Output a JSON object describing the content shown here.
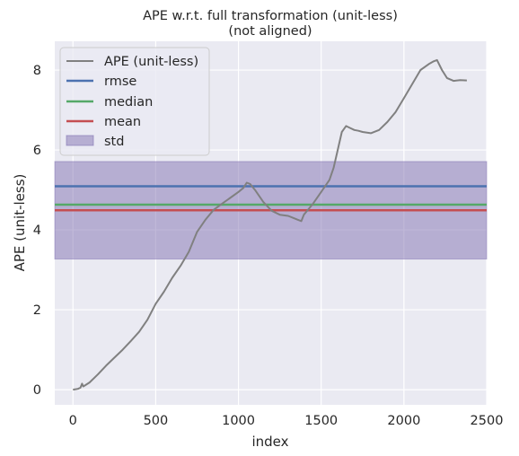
{
  "chart_data": {
    "type": "line",
    "title": "APE w.r.t. full transformation (unit-less)",
    "subtitle": "(not aligned)",
    "xlabel": "index",
    "ylabel": "APE (unit-less)",
    "xlim": [
      -110,
      2500
    ],
    "ylim": [
      -0.38,
      8.72
    ],
    "xticks": [
      0,
      500,
      1000,
      1500,
      2000,
      2500
    ],
    "yticks": [
      0,
      2,
      4,
      6,
      8
    ],
    "grid": true,
    "legend_position": "top-left",
    "legend": [
      "APE (unit-less)",
      "rmse",
      "median",
      "mean",
      "std"
    ],
    "colors": {
      "ape": "#808080",
      "rmse": "#4c72b0",
      "median": "#55a868",
      "mean": "#c44e52",
      "std": "#8172b2",
      "background": "#eaeaf2"
    },
    "stats": {
      "rmse": 5.09,
      "median": 4.63,
      "mean": 4.49,
      "std": 1.22
    },
    "series": [
      {
        "name": "APE (unit-less)",
        "x": [
          0,
          30,
          45,
          55,
          62,
          70,
          100,
          150,
          200,
          250,
          300,
          350,
          400,
          450,
          500,
          550,
          600,
          650,
          700,
          750,
          800,
          850,
          900,
          950,
          1000,
          1030,
          1050,
          1070,
          1080,
          1100,
          1150,
          1200,
          1250,
          1300,
          1330,
          1360,
          1380,
          1395,
          1410,
          1450,
          1500,
          1550,
          1575,
          1600,
          1625,
          1650,
          1675,
          1700,
          1725,
          1750,
          1800,
          1850,
          1900,
          1950,
          2000,
          2050,
          2100,
          2150,
          2180,
          2200,
          2230,
          2260,
          2300,
          2340,
          2380
        ],
        "y": [
          0.0,
          0.02,
          0.05,
          0.15,
          0.08,
          0.1,
          0.18,
          0.38,
          0.6,
          0.8,
          1.0,
          1.22,
          1.45,
          1.75,
          2.15,
          2.45,
          2.8,
          3.1,
          3.45,
          3.95,
          4.25,
          4.5,
          4.65,
          4.8,
          4.95,
          5.05,
          5.18,
          5.15,
          5.1,
          5.0,
          4.7,
          4.48,
          4.38,
          4.35,
          4.3,
          4.25,
          4.22,
          4.38,
          4.45,
          4.65,
          4.95,
          5.25,
          5.55,
          6.0,
          6.45,
          6.6,
          6.55,
          6.5,
          6.48,
          6.45,
          6.42,
          6.5,
          6.7,
          6.95,
          7.3,
          7.65,
          8.0,
          8.15,
          8.22,
          8.25,
          8.0,
          7.8,
          7.73,
          7.75,
          7.74
        ]
      }
    ]
  }
}
